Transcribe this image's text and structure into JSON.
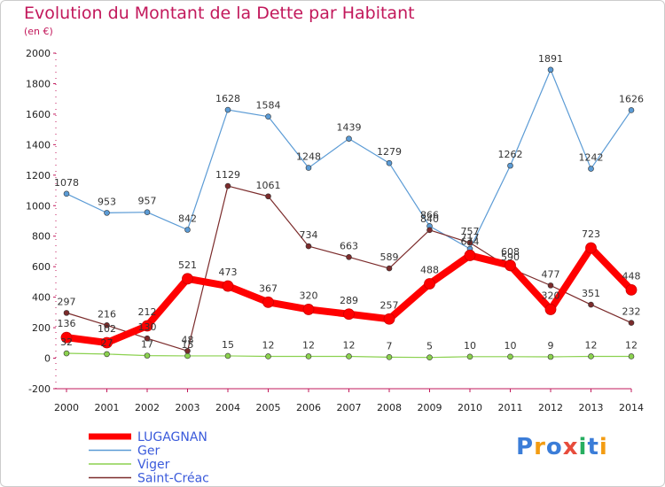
{
  "title": "Evolution du Montant de la Dette par Habitant",
  "subtitle": "(en €)",
  "chart_data": {
    "type": "line",
    "title": "Evolution du Montant de la Dette par Habitant",
    "subtitle": "(en €)",
    "x": [
      "2000",
      "2001",
      "2002",
      "2003",
      "2004",
      "2005",
      "2006",
      "2007",
      "2008",
      "2009",
      "2010",
      "2011",
      "2012",
      "2013",
      "2014"
    ],
    "ylim": [
      -200,
      2000
    ],
    "yticks": [
      -200,
      0,
      200,
      400,
      600,
      800,
      1000,
      1200,
      1400,
      1600,
      1800,
      2000
    ],
    "grid": false,
    "legend_position": "bottom-left",
    "series": [
      {
        "name": "LUGAGNAN",
        "color": "#ff0000",
        "values": [
          136,
          102,
          212,
          521,
          473,
          367,
          320,
          289,
          257,
          488,
          674,
          608,
          320,
          723,
          448
        ]
      },
      {
        "name": "Ger",
        "color": "#5b9bd5",
        "values": [
          1078,
          953,
          957,
          842,
          1628,
          1584,
          1248,
          1439,
          1279,
          866,
          717,
          1262,
          1891,
          1242,
          1626
        ]
      },
      {
        "name": "Viger",
        "color": "#8bd14f",
        "values": [
          32,
          27,
          17,
          15,
          15,
          12,
          12,
          12,
          7,
          5,
          10,
          10,
          9,
          12,
          12
        ]
      },
      {
        "name": "Saint-Créac",
        "color": "#7b2b2b",
        "values": [
          297,
          216,
          130,
          48,
          1129,
          1061,
          734,
          663,
          589,
          840,
          757,
          590,
          477,
          351,
          232
        ]
      }
    ]
  },
  "logo": {
    "text": "Proxiti",
    "colors": [
      "#3b7dd8",
      "#f39c12",
      "#3b7dd8",
      "#e74c3c",
      "#27ae60",
      "#3b7dd8",
      "#f39c12"
    ]
  }
}
